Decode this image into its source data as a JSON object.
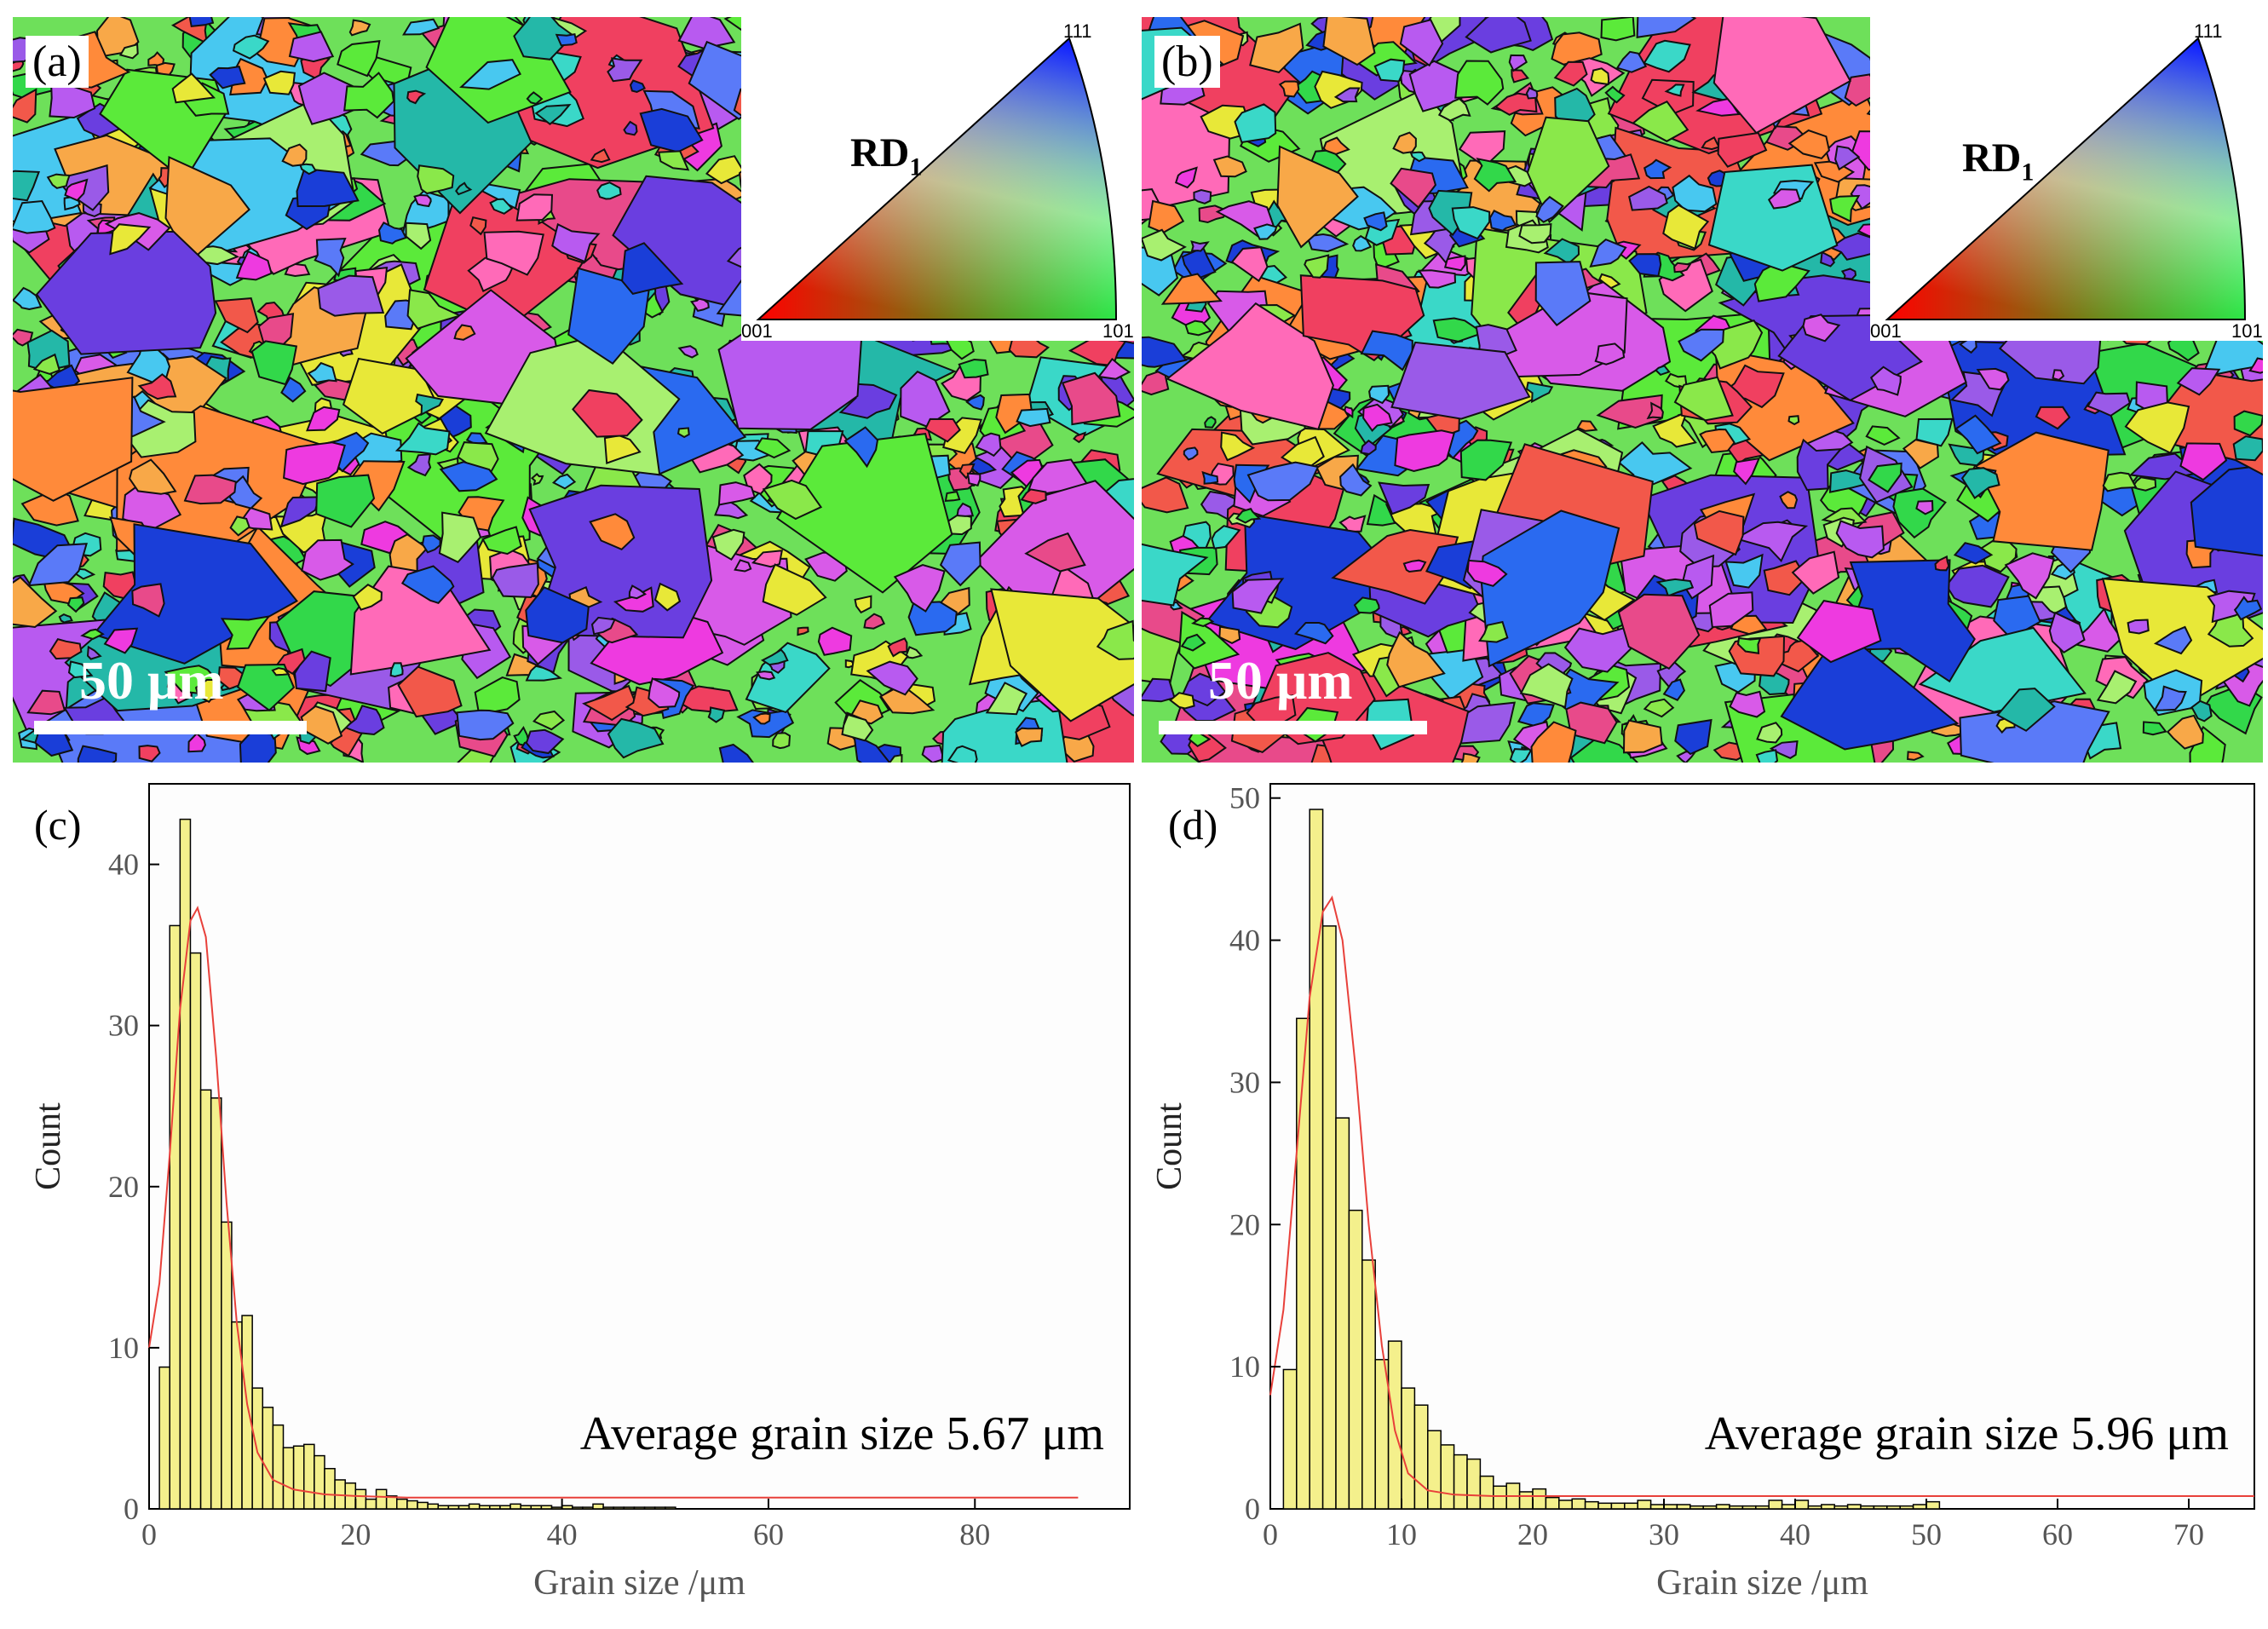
{
  "panels": {
    "a": {
      "label": "(a)",
      "scale_bar": "50 μm",
      "ipf": {
        "rd": "RD",
        "rd_sub": "1",
        "corner_111": "111",
        "corner_001": "001",
        "corner_101": "101"
      }
    },
    "b": {
      "label": "(b)",
      "scale_bar": "50 μm",
      "ipf": {
        "rd": "RD",
        "rd_sub": "1",
        "corner_111": "111",
        "corner_001": "001",
        "corner_101": "101"
      }
    }
  },
  "chart_data": [
    {
      "panel": "(c)",
      "type": "bar",
      "xlabel": "Grain size /μm",
      "ylabel": "Count",
      "annotation": "Average grain size 5.67 μm",
      "xlim": [
        0,
        95
      ],
      "ylim": [
        0,
        45
      ],
      "xticks": [
        0,
        20,
        40,
        60,
        80
      ],
      "yticks": [
        0,
        10,
        20,
        30,
        40
      ],
      "bin_width": 1,
      "bin_starts": [
        1,
        2,
        3,
        4,
        5,
        6,
        7,
        8,
        9,
        10,
        11,
        12,
        13,
        14,
        15,
        16,
        17,
        18,
        19,
        20,
        21,
        22,
        23,
        24,
        25,
        26,
        27,
        28,
        29,
        30,
        31,
        32,
        33,
        34,
        35,
        36,
        37,
        38,
        39,
        40,
        41,
        42,
        43,
        44,
        45,
        46,
        47,
        48,
        49,
        50
      ],
      "values": [
        8.8,
        36.2,
        42.8,
        34.5,
        26,
        25.5,
        17.8,
        11.6,
        12,
        7.5,
        6.3,
        5.2,
        3.8,
        3.9,
        4,
        3.3,
        2.5,
        1.8,
        1.6,
        1.2,
        0.6,
        1.2,
        0.8,
        0.6,
        0.5,
        0.4,
        0.3,
        0.2,
        0.2,
        0.2,
        0.3,
        0.2,
        0.2,
        0.2,
        0.3,
        0.2,
        0.2,
        0.2,
        0.1,
        0.2,
        0.1,
        0.1,
        0.3,
        0.1,
        0.1,
        0.1,
        0.1,
        0.1,
        0.1,
        0.1
      ],
      "fit_curve": {
        "name": "fit",
        "color": "#e8403a",
        "x": [
          0,
          1,
          2,
          3,
          4,
          4.7,
          5.5,
          6.5,
          7.5,
          8.5,
          9.5,
          10.5,
          12,
          14,
          17,
          20,
          25,
          30,
          40,
          60,
          90
        ],
        "y": [
          10,
          14,
          22,
          31,
          36.5,
          37.3,
          35.5,
          28,
          19,
          11.5,
          6.5,
          3.5,
          1.8,
          1.2,
          0.9,
          0.8,
          0.7,
          0.7,
          0.7,
          0.7,
          0.7
        ]
      },
      "bar_color": "#f4f08c"
    },
    {
      "panel": "(d)",
      "type": "bar",
      "xlabel": "Grain size /μm",
      "ylabel": "Count",
      "annotation": "Average grain size 5.96 μm",
      "xlim": [
        0,
        75
      ],
      "ylim": [
        0,
        51
      ],
      "xticks": [
        0,
        10,
        20,
        30,
        40,
        50,
        60,
        70
      ],
      "yticks": [
        0,
        10,
        20,
        30,
        40,
        50
      ],
      "bin_width": 1,
      "bin_starts": [
        1,
        2,
        3,
        4,
        5,
        6,
        7,
        8,
        9,
        10,
        11,
        12,
        13,
        14,
        15,
        16,
        17,
        18,
        19,
        20,
        21,
        22,
        23,
        24,
        25,
        26,
        27,
        28,
        29,
        30,
        31,
        32,
        33,
        34,
        35,
        36,
        37,
        38,
        39,
        40,
        41,
        42,
        43,
        44,
        45,
        46,
        47,
        48,
        49,
        50
      ],
      "values": [
        9.8,
        34.5,
        49.2,
        41,
        27.5,
        21,
        17.5,
        10.5,
        11.8,
        8.5,
        7.3,
        5.5,
        4.5,
        3.8,
        3.5,
        2.3,
        1.6,
        1.8,
        1.2,
        1.4,
        0.8,
        0.6,
        0.7,
        0.5,
        0.4,
        0.4,
        0.4,
        0.6,
        0.3,
        0.3,
        0.3,
        0.2,
        0.2,
        0.3,
        0.2,
        0.2,
        0.2,
        0.6,
        0.3,
        0.6,
        0.2,
        0.3,
        0.2,
        0.3,
        0.2,
        0.2,
        0.2,
        0.2,
        0.3,
        0.5
      ],
      "fit_curve": {
        "name": "fit",
        "color": "#e8403a",
        "x": [
          0,
          1,
          2,
          3,
          4,
          4.7,
          5.5,
          6.5,
          7.5,
          8.5,
          9.5,
          10.5,
          12,
          14,
          17,
          20,
          25,
          30,
          40,
          60,
          75
        ],
        "y": [
          8,
          14,
          25,
          36,
          42,
          43,
          40,
          31,
          20,
          11.5,
          5.5,
          2.5,
          1.3,
          1,
          0.9,
          0.9,
          0.9,
          0.9,
          0.9,
          0.9,
          0.9
        ]
      },
      "bar_color": "#f4f08c"
    }
  ]
}
